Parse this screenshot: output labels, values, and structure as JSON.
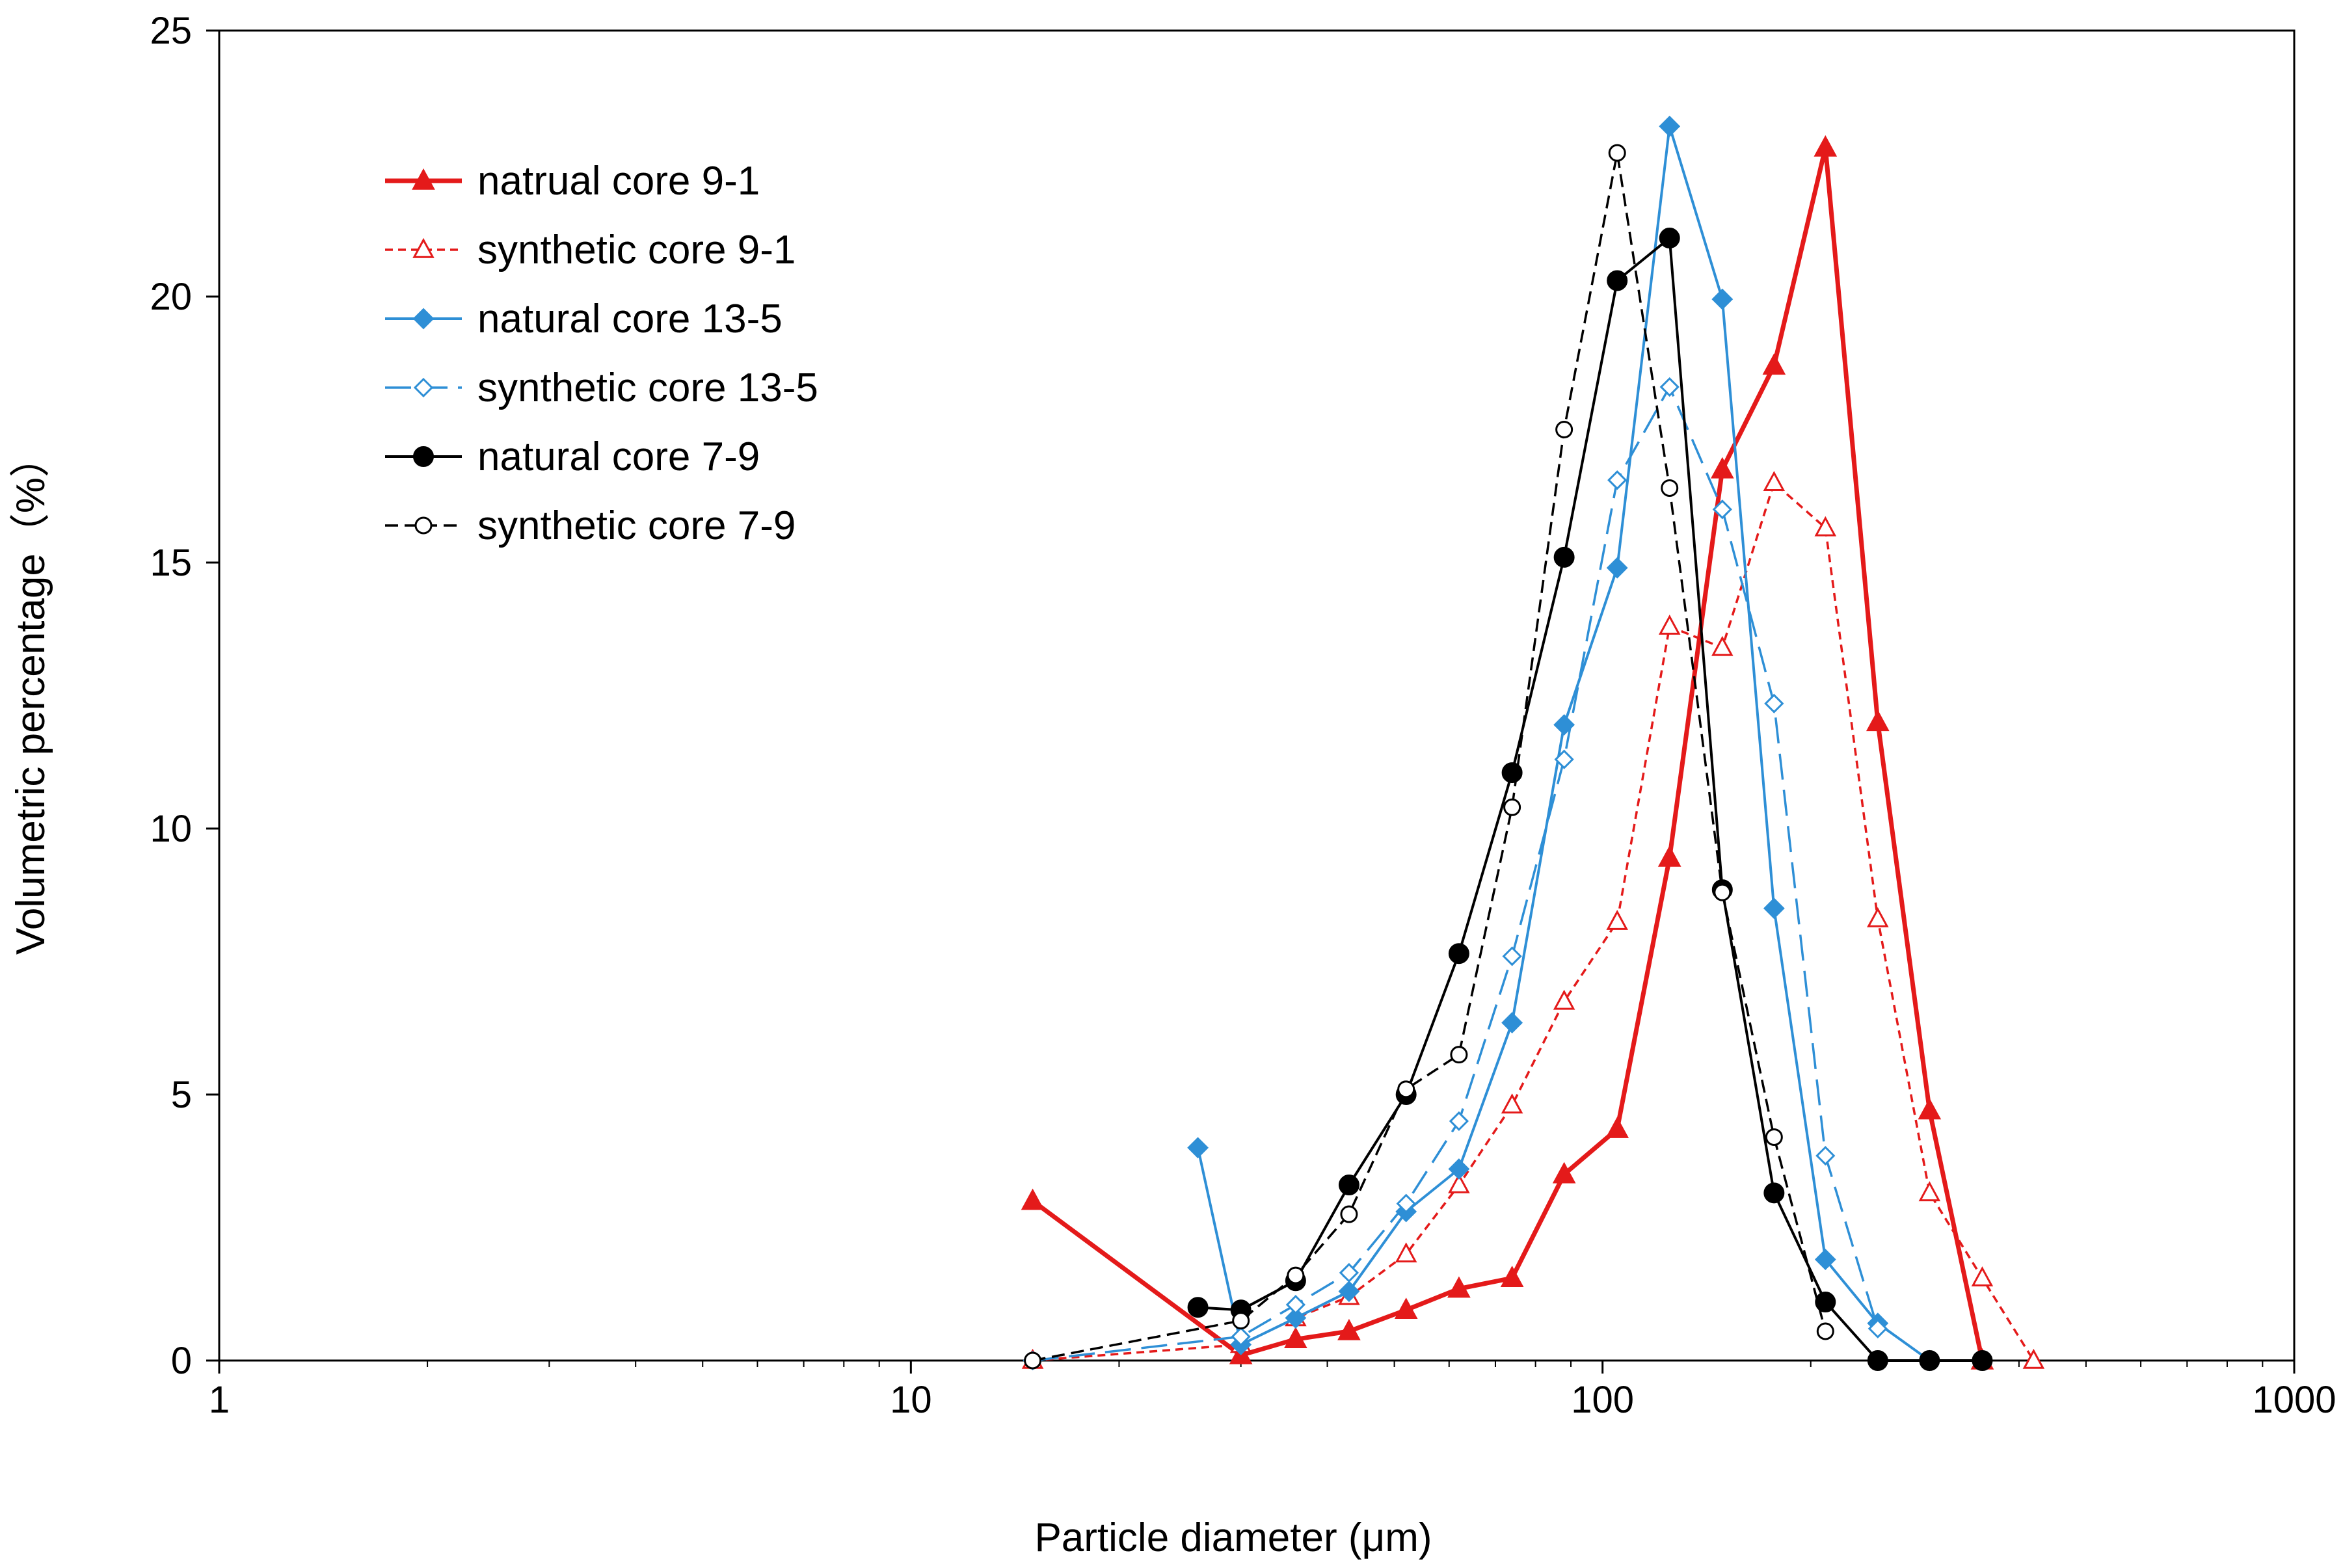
{
  "chart_data": {
    "type": "line",
    "title": "",
    "xlabel": "Particle diameter (μm)",
    "ylabel": "Volumetric percentage（%）",
    "xscale": "log",
    "xlim": [
      1,
      1000
    ],
    "ylim": [
      0,
      25
    ],
    "grid": false,
    "legend_position": "top-left",
    "x_ticks": [
      1,
      10,
      100,
      1000
    ],
    "x_tick_labels": [
      "1",
      "10",
      "100",
      "1000"
    ],
    "y_ticks": [
      0,
      5,
      10,
      15,
      20,
      25
    ],
    "y_tick_labels": [
      "0",
      "5",
      "10",
      "15",
      "20",
      "25"
    ],
    "series": [
      {
        "name": "natrual core 9-1",
        "color": "#e41a1a",
        "dash": "solid",
        "marker": "triangle",
        "filled": true,
        "x": [
          15,
          30,
          36,
          43,
          52,
          62,
          74,
          88,
          105,
          125,
          149,
          177,
          210,
          250,
          297,
          354
        ],
        "y": [
          3.0,
          0.1,
          0.4,
          0.55,
          0.95,
          1.35,
          1.55,
          3.5,
          4.35,
          9.45,
          16.75,
          18.7,
          22.8,
          12.0,
          4.7,
          0.0
        ]
      },
      {
        "name": "synthetic core 9-1",
        "color": "#e41a1a",
        "dash": "short",
        "marker": "triangle",
        "filled": false,
        "x": [
          15,
          30,
          36,
          43,
          52,
          62,
          74,
          88,
          105,
          125,
          149,
          177,
          210,
          250,
          297,
          354,
          420
        ],
        "y": [
          0.0,
          0.3,
          0.8,
          1.2,
          2.0,
          3.3,
          4.8,
          6.75,
          8.25,
          13.8,
          13.4,
          16.5,
          15.65,
          8.3,
          3.15,
          1.55,
          0.0
        ]
      },
      {
        "name": "natural core 13-5",
        "color": "#2e8fd6",
        "dash": "solid",
        "marker": "diamond",
        "filled": true,
        "x": [
          26,
          30,
          36,
          43,
          52,
          62,
          74,
          88,
          105,
          125,
          149,
          177,
          210,
          250,
          297
        ],
        "y": [
          4.0,
          0.3,
          0.8,
          1.3,
          2.8,
          3.6,
          6.35,
          11.95,
          14.9,
          23.2,
          19.95,
          8.5,
          1.9,
          0.7,
          0.0
        ]
      },
      {
        "name": "synthetic core 13-5",
        "color": "#2e8fd6",
        "dash": "long",
        "marker": "diamond",
        "filled": false,
        "x": [
          15,
          30,
          36,
          43,
          52,
          62,
          74,
          88,
          105,
          125,
          149,
          177,
          210,
          250
        ],
        "y": [
          0.0,
          0.45,
          1.05,
          1.65,
          2.95,
          4.5,
          7.6,
          11.3,
          16.55,
          18.3,
          16.0,
          12.35,
          3.85,
          0.6
        ]
      },
      {
        "name": "natural core 7-9",
        "color": "#000000",
        "dash": "solid",
        "marker": "circle",
        "filled": true,
        "x": [
          26,
          30,
          36,
          43,
          52,
          62,
          74,
          88,
          105,
          125,
          149,
          177,
          210,
          250,
          297,
          354
        ],
        "y": [
          1.0,
          0.95,
          1.5,
          3.3,
          5.0,
          7.65,
          11.05,
          15.1,
          20.3,
          21.1,
          8.85,
          3.15,
          1.1,
          0.0,
          0.0,
          0.0
        ]
      },
      {
        "name": "synthetic core 7-9",
        "color": "#000000",
        "dash": "medium",
        "marker": "circle",
        "filled": false,
        "x": [
          15,
          30,
          36,
          43,
          52,
          62,
          74,
          88,
          105,
          125,
          149,
          177,
          210
        ],
        "y": [
          0.0,
          0.75,
          1.6,
          2.75,
          5.1,
          5.75,
          10.4,
          17.5,
          22.7,
          16.4,
          8.8,
          4.2,
          0.55
        ]
      }
    ]
  }
}
